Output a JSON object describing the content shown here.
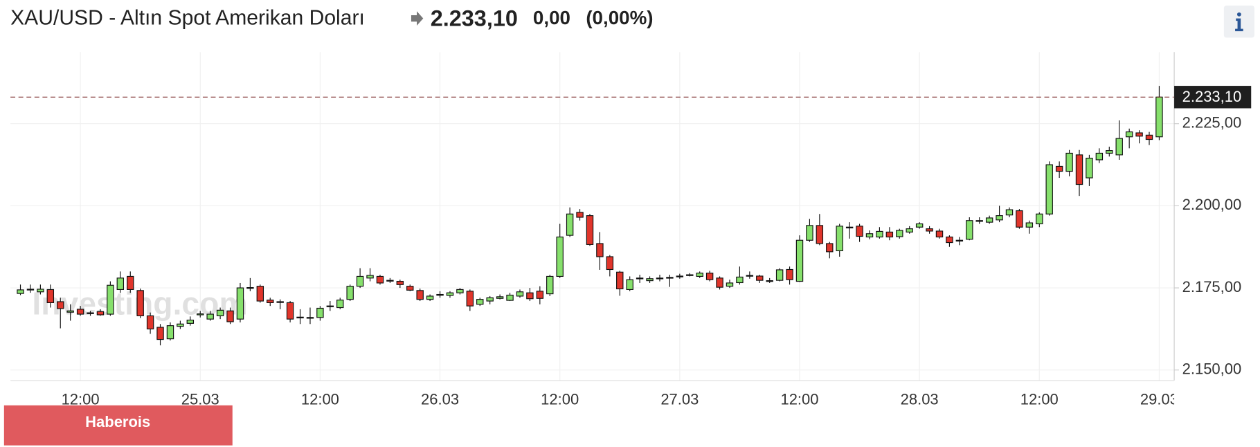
{
  "header": {
    "title": "XAU/USD - Altın Spot Amerikan Doları",
    "price": "2.233,10",
    "change": "0,00",
    "change_pct": "(0,00%)"
  },
  "badge": "Haberois",
  "watermark": "Investing.com",
  "chart_data": {
    "type": "candlestick",
    "x": [
      6,
      7,
      8,
      9,
      10,
      11,
      12,
      13,
      14,
      15,
      16,
      17,
      18,
      19,
      20,
      21,
      22,
      23,
      24,
      25,
      26,
      27,
      28,
      29,
      30,
      31,
      32,
      33,
      34,
      35,
      36,
      37,
      38,
      39,
      40,
      41,
      42,
      43,
      44,
      45,
      46,
      47,
      48,
      49,
      50,
      51,
      52,
      53,
      54,
      55,
      56,
      57,
      58,
      59,
      60,
      61,
      62,
      63,
      64,
      65,
      66,
      67,
      68,
      69,
      70,
      71,
      72,
      73,
      74,
      75,
      76,
      77,
      78,
      79,
      80,
      81,
      82,
      83,
      84,
      85,
      86,
      87,
      88,
      89,
      90,
      91,
      92,
      93,
      94,
      95,
      96,
      97,
      98,
      99,
      100,
      101,
      102,
      103,
      104,
      105,
      106,
      107,
      108,
      109,
      110,
      111,
      112,
      113,
      114,
      115,
      116,
      117,
      118,
      119,
      120
    ],
    "open": [
      2173.3,
      2174.5,
      2173.8,
      2174.5,
      2170.8,
      2167.6,
      2168.5,
      2167.2,
      2167.8,
      2167,
      2174.5,
      2178.5,
      2174.2,
      2166.5,
      2163,
      2159.5,
      2163.3,
      2164.2,
      2166.8,
      2165.5,
      2166.5,
      2168,
      2165.5,
      2174.9,
      2175.5,
      2171.3,
      2170.7,
      2170.5,
      2166,
      2165.9,
      2166,
      2169.4,
      2169,
      2171.5,
      2175.5,
      2178,
      2178.5,
      2177.2,
      2177,
      2175.5,
      2174.2,
      2171.5,
      2172.9,
      2172.7,
      2173.5,
      2174,
      2170,
      2171,
      2171.8,
      2171.2,
      2172.5,
      2173.5,
      2174,
      2173.2,
      2178.5,
      2191,
      2198,
      2197,
      2188.5,
      2184.5,
      2179.8,
      2174.5,
      2177.9,
      2177.2,
      2177.9,
      2178.1,
      2178.4,
      2178.9,
      2178.5,
      2179.5,
      2178,
      2175.5,
      2176.6,
      2178.7,
      2178.6,
      2177.1,
      2177.3,
      2180.6,
      2177,
      2189.5,
      2194,
      2188.5,
      2186.3,
      2193.4,
      2193.8,
      2190.5,
      2190.5,
      2192,
      2190.6,
      2192,
      2193.5,
      2193,
      2192.3,
      2190.5,
      2189.4,
      2189.8,
      2195.4,
      2195,
      2195.7,
      2197.2,
      2198.5,
      2193.5,
      2194.5,
      2197.5,
      2212,
      2210.5,
      2215.5,
      2208.5,
      2214,
      2216,
      2215.5,
      2221,
      2222.2,
      2221.5,
      2221
    ],
    "high": [
      2176,
      2176,
      2176,
      2176,
      2172,
      2170,
      2169.5,
      2168,
      2168.5,
      2177,
      2180,
      2180,
      2174.8,
      2167.5,
      2164,
      2164.5,
      2165,
      2166.3,
      2168,
      2168,
      2169,
      2169,
      2176.5,
      2178,
      2176,
      2172,
      2171.5,
      2171,
      2168.5,
      2169,
      2169.5,
      2171,
      2172,
      2176,
      2181,
      2181,
      2179,
      2178,
      2177.5,
      2176,
      2174.8,
      2173,
      2174,
      2174,
      2175,
      2174.5,
      2172,
      2172.5,
      2173,
      2173.5,
      2174.5,
      2175,
      2175.5,
      2179,
      2194.5,
      2199.5,
      2199,
      2197.5,
      2192,
      2185,
      2180.2,
      2178.5,
      2179,
      2178.5,
      2179,
      2179,
      2179.3,
      2179.5,
      2180,
      2180.2,
      2178.5,
      2177.5,
      2181.5,
      2180,
      2179,
      2178,
      2181,
      2181.5,
      2191,
      2196,
      2197.5,
      2189,
      2194.5,
      2195,
      2194.5,
      2192.5,
      2193.5,
      2193.5,
      2193,
      2193.8,
      2195,
      2193.8,
      2193,
      2191,
      2190.5,
      2196.5,
      2196.5,
      2197,
      2200,
      2199.5,
      2199,
      2195.5,
      2198,
      2213.5,
      2213.5,
      2217,
      2217,
      2215.5,
      2217.5,
      2218,
      2226,
      2223.5,
      2223,
      2222.5,
      2236.5
    ],
    "low": [
      2172.8,
      2173.5,
      2173,
      2169,
      2162.7,
      2165,
      2166.5,
      2166.5,
      2166.5,
      2166.5,
      2173.5,
      2173.5,
      2165.8,
      2161,
      2157.5,
      2159,
      2162.5,
      2163.5,
      2166,
      2165,
      2165.5,
      2164,
      2164.5,
      2174,
      2170.5,
      2169.5,
      2168.5,
      2164.5,
      2164,
      2164,
      2165,
      2168,
      2168.5,
      2171,
      2175,
      2177,
      2176,
      2176.5,
      2175,
      2174,
      2171,
      2171,
      2172,
      2172,
      2173,
      2168,
      2169.5,
      2170,
      2171.5,
      2171,
      2172,
      2171,
      2170,
      2172.5,
      2178,
      2190.5,
      2195.5,
      2187.8,
      2180.5,
      2178.5,
      2172.6,
      2174,
      2176.5,
      2176.5,
      2177,
      2175.3,
      2177.8,
      2178.5,
      2178,
      2177,
      2174.5,
      2175,
      2176,
      2177.8,
      2176.5,
      2176.5,
      2177,
      2176,
      2176.8,
      2189,
      2188,
      2184,
      2184.5,
      2190,
      2189,
      2189.8,
      2190,
      2189.5,
      2190,
      2191.5,
      2193,
      2191.5,
      2190,
      2187.5,
      2188,
      2189.5,
      2194.5,
      2194.5,
      2195,
      2196.5,
      2193,
      2191.5,
      2193.5,
      2197,
      2208.5,
      2209,
      2203,
      2206,
      2213,
      2215,
      2214,
      2217.5,
      2219,
      2218.5,
      2220
    ],
    "close": [
      2174.4,
      2174.6,
      2174.6,
      2170.5,
      2168.7,
      2168,
      2167,
      2167.4,
      2166.8,
      2175.8,
      2178,
      2174.5,
      2166.5,
      2162.5,
      2159.3,
      2163.5,
      2164,
      2165.2,
      2167.1,
      2167,
      2168.2,
      2164.7,
      2175,
      2175.1,
      2171,
      2170.5,
      2170.8,
      2165.5,
      2166.1,
      2166,
      2168.8,
      2169.5,
      2171.3,
      2175.5,
      2178.5,
      2178.8,
      2176.5,
      2177.3,
      2176,
      2174.3,
      2171.5,
      2172.5,
      2173,
      2173.5,
      2174.5,
      2169.5,
      2171.5,
      2172,
      2172.3,
      2172.8,
      2173.8,
      2171.7,
      2171.8,
      2178.5,
      2190.5,
      2197.5,
      2196.5,
      2188.2,
      2184.5,
      2180.6,
      2174.7,
      2177.5,
      2178,
      2177.8,
      2178,
      2178.2,
      2178.6,
      2179,
      2179.5,
      2177.5,
      2175.2,
      2176.5,
      2178.3,
      2178.8,
      2177.3,
      2177.2,
      2180.5,
      2177.5,
      2189.5,
      2194,
      2188.5,
      2186,
      2193.8,
      2193.5,
      2190.7,
      2191.5,
      2192.2,
      2190.5,
      2192.5,
      2193,
      2194.5,
      2192.3,
      2190.5,
      2188.8,
      2189.5,
      2195.5,
      2195.5,
      2196.3,
      2197,
      2198.8,
      2193.5,
      2194.8,
      2197.5,
      2212.5,
      2210.5,
      2216,
      2206.5,
      2214.5,
      2216,
      2216.8,
      2220.5,
      2222.5,
      2221.2,
      2220.2,
      2233.1
    ],
    "up_color": "#86e06c",
    "down_color": "#e0352b",
    "xlim": [
      5,
      121.5
    ],
    "ylim": [
      2146.8,
      2246.8
    ],
    "xticks": [
      {
        "value": 12,
        "label": "12:00"
      },
      {
        "value": 24,
        "label": "25.03"
      },
      {
        "value": 36,
        "label": "12:00"
      },
      {
        "value": 48,
        "label": "26.03"
      },
      {
        "value": 60,
        "label": "12:00"
      },
      {
        "value": 72,
        "label": "27.03"
      },
      {
        "value": 84,
        "label": "12:00"
      },
      {
        "value": 96,
        "label": "28.03"
      },
      {
        "value": 108,
        "label": "12:00"
      },
      {
        "value": 120,
        "label": "29.03"
      }
    ],
    "yticks": [
      {
        "value": 2150,
        "label": "2.150,00"
      },
      {
        "value": 2175,
        "label": "2.175,00"
      },
      {
        "value": 2200,
        "label": "2.200,00"
      },
      {
        "value": 2225,
        "label": "2.225,00"
      }
    ],
    "last_price": {
      "value": 2233.1,
      "label": "2.233,10"
    },
    "grid": true
  }
}
